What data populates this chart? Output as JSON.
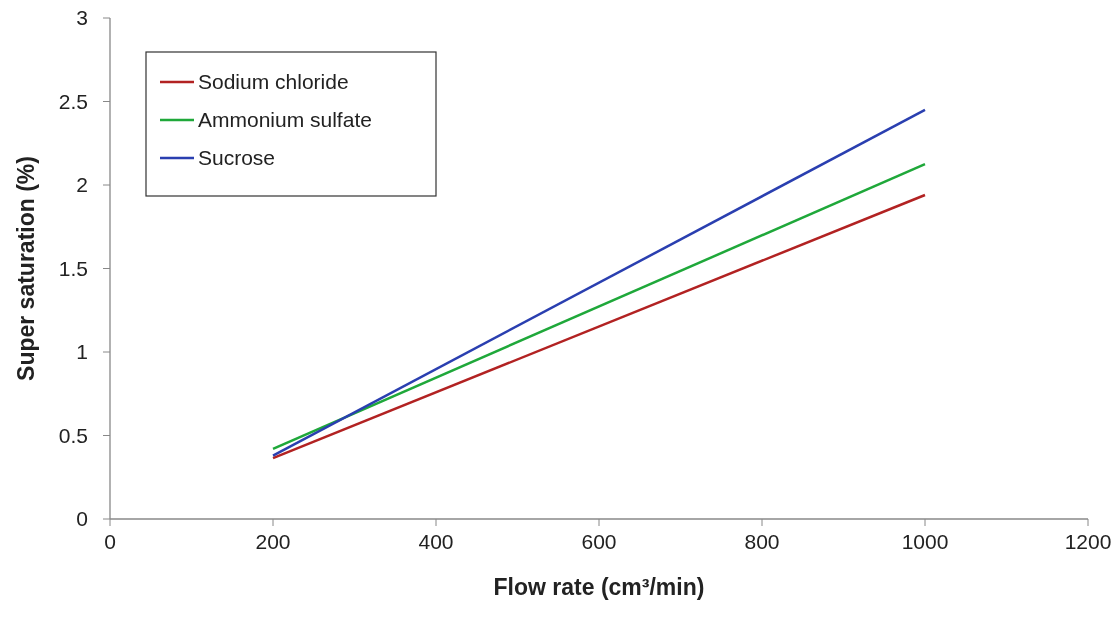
{
  "chart_data": {
    "type": "line",
    "xlabel": "Flow rate (cm³/min)",
    "ylabel": "Super saturation (%)",
    "x": [
      200,
      1000
    ],
    "series": [
      {
        "name": "Sodium chloride",
        "color": "#b22222",
        "values": [
          0.365,
          1.94
        ]
      },
      {
        "name": "Ammonium sulfate",
        "color": "#1fa83a",
        "values": [
          0.42,
          2.125
        ]
      },
      {
        "name": "Sucrose",
        "color": "#2a3fb0",
        "values": [
          0.38,
          2.45
        ]
      }
    ],
    "xlim": [
      0,
      1200
    ],
    "xticks": [
      0,
      200,
      400,
      600,
      800,
      1000,
      1200
    ],
    "ylim": [
      0,
      3
    ],
    "yticks": [
      0,
      0.5,
      1,
      1.5,
      2,
      2.5,
      3
    ],
    "grid": false,
    "legend": "top left",
    "marker": "none",
    "line_style": "solid"
  }
}
